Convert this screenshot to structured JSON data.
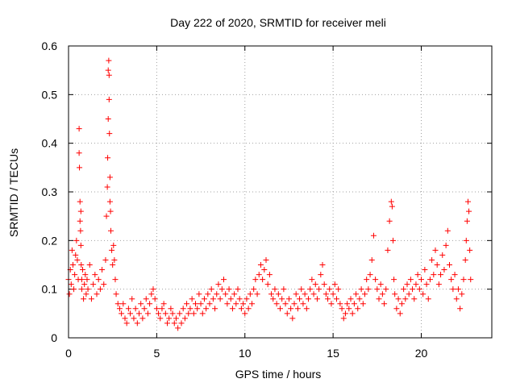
{
  "chart_data": {
    "type": "scatter",
    "title": "Day 222 of 2020, SRMTID for receiver meli",
    "xlabel": "GPS time / hours",
    "ylabel": "SRMTID / TECUs",
    "xlim": [
      0,
      24
    ],
    "ylim": [
      0,
      0.6
    ],
    "xticks": [
      0,
      5,
      10,
      15,
      20
    ],
    "yticks": [
      0,
      0.1,
      0.2,
      0.3,
      0.4,
      0.5,
      0.6
    ],
    "xtick_labels": [
      "0",
      "5",
      "10",
      "15",
      "20"
    ],
    "ytick_labels": [
      "0",
      "0.1",
      "0.2",
      "0.3",
      "0.4",
      "0.5",
      "0.6"
    ],
    "grid": true,
    "marker": "+",
    "color": "#ff0000",
    "series": [
      {
        "name": "SRMTID",
        "x": [
          0.0,
          0.05,
          0.1,
          0.15,
          0.2,
          0.25,
          0.3,
          0.35,
          0.4,
          0.45,
          0.5,
          0.55,
          0.6,
          0.6,
          0.62,
          0.65,
          0.65,
          0.68,
          0.7,
          0.7,
          0.72,
          0.75,
          0.75,
          0.8,
          0.85,
          0.9,
          0.95,
          1.0,
          1.05,
          1.1,
          1.2,
          1.3,
          1.4,
          1.5,
          1.6,
          1.7,
          1.8,
          1.9,
          2.0,
          2.1,
          2.15,
          2.2,
          2.22,
          2.25,
          2.25,
          2.28,
          2.3,
          2.3,
          2.32,
          2.35,
          2.35,
          2.38,
          2.4,
          2.45,
          2.5,
          2.55,
          2.6,
          2.65,
          2.7,
          2.8,
          2.9,
          3.0,
          3.1,
          3.2,
          3.3,
          3.4,
          3.5,
          3.6,
          3.7,
          3.8,
          3.9,
          4.0,
          4.1,
          4.2,
          4.3,
          4.4,
          4.5,
          4.6,
          4.7,
          4.8,
          4.9,
          5.0,
          5.1,
          5.2,
          5.3,
          5.4,
          5.5,
          5.6,
          5.7,
          5.8,
          5.9,
          6.0,
          6.1,
          6.2,
          6.3,
          6.4,
          6.5,
          6.6,
          6.7,
          6.8,
          6.9,
          7.0,
          7.1,
          7.2,
          7.3,
          7.4,
          7.5,
          7.6,
          7.7,
          7.8,
          7.9,
          8.0,
          8.1,
          8.2,
          8.3,
          8.4,
          8.5,
          8.6,
          8.7,
          8.8,
          8.9,
          9.0,
          9.1,
          9.2,
          9.3,
          9.4,
          9.5,
          9.6,
          9.7,
          9.8,
          9.9,
          10.0,
          10.1,
          10.2,
          10.3,
          10.4,
          10.5,
          10.6,
          10.7,
          10.8,
          10.9,
          11.0,
          11.1,
          11.2,
          11.3,
          11.4,
          11.5,
          11.6,
          11.7,
          11.8,
          11.9,
          12.0,
          12.1,
          12.2,
          12.3,
          12.4,
          12.5,
          12.6,
          12.7,
          12.8,
          12.9,
          13.0,
          13.1,
          13.2,
          13.3,
          13.4,
          13.5,
          13.6,
          13.7,
          13.8,
          13.9,
          14.0,
          14.1,
          14.2,
          14.3,
          14.4,
          14.5,
          14.6,
          14.7,
          14.8,
          14.9,
          15.0,
          15.1,
          15.2,
          15.3,
          15.4,
          15.5,
          15.6,
          15.7,
          15.8,
          15.9,
          16.0,
          16.1,
          16.2,
          16.3,
          16.4,
          16.5,
          16.6,
          16.7,
          16.8,
          16.9,
          17.0,
          17.1,
          17.2,
          17.3,
          17.4,
          17.5,
          17.6,
          17.7,
          17.8,
          17.9,
          18.0,
          18.1,
          18.2,
          18.3,
          18.35,
          18.4,
          18.45,
          18.5,
          18.6,
          18.7,
          18.8,
          18.9,
          19.0,
          19.1,
          19.2,
          19.3,
          19.4,
          19.5,
          19.6,
          19.7,
          19.8,
          19.9,
          20.0,
          20.1,
          20.2,
          20.3,
          20.4,
          20.5,
          20.6,
          20.7,
          20.8,
          20.9,
          21.0,
          21.1,
          21.2,
          21.3,
          21.4,
          21.5,
          21.6,
          21.7,
          21.8,
          21.9,
          22.0,
          22.1,
          22.2,
          22.3,
          22.4,
          22.5,
          22.55,
          22.6,
          22.65,
          22.7,
          22.75,
          22.8
        ],
        "y": [
          0.12,
          0.09,
          0.14,
          0.11,
          0.18,
          0.15,
          0.1,
          0.13,
          0.17,
          0.2,
          0.16,
          0.12,
          0.43,
          0.38,
          0.35,
          0.28,
          0.24,
          0.22,
          0.26,
          0.19,
          0.15,
          0.12,
          0.1,
          0.14,
          0.08,
          0.11,
          0.13,
          0.09,
          0.12,
          0.1,
          0.15,
          0.08,
          0.11,
          0.13,
          0.09,
          0.12,
          0.1,
          0.14,
          0.11,
          0.16,
          0.25,
          0.31,
          0.37,
          0.45,
          0.55,
          0.57,
          0.54,
          0.49,
          0.42,
          0.33,
          0.28,
          0.26,
          0.22,
          0.18,
          0.15,
          0.19,
          0.16,
          0.12,
          0.09,
          0.07,
          0.06,
          0.05,
          0.07,
          0.04,
          0.03,
          0.06,
          0.05,
          0.08,
          0.04,
          0.06,
          0.03,
          0.05,
          0.07,
          0.04,
          0.06,
          0.08,
          0.05,
          0.07,
          0.09,
          0.1,
          0.08,
          0.06,
          0.05,
          0.04,
          0.06,
          0.07,
          0.05,
          0.03,
          0.04,
          0.06,
          0.05,
          0.03,
          0.04,
          0.02,
          0.05,
          0.03,
          0.06,
          0.04,
          0.07,
          0.05,
          0.06,
          0.08,
          0.05,
          0.07,
          0.06,
          0.09,
          0.07,
          0.05,
          0.08,
          0.06,
          0.09,
          0.07,
          0.1,
          0.08,
          0.06,
          0.09,
          0.11,
          0.08,
          0.1,
          0.12,
          0.09,
          0.07,
          0.1,
          0.08,
          0.06,
          0.09,
          0.07,
          0.1,
          0.08,
          0.06,
          0.07,
          0.05,
          0.08,
          0.06,
          0.09,
          0.07,
          0.1,
          0.12,
          0.09,
          0.13,
          0.15,
          0.12,
          0.14,
          0.16,
          0.11,
          0.13,
          0.09,
          0.08,
          0.1,
          0.07,
          0.09,
          0.06,
          0.08,
          0.1,
          0.07,
          0.05,
          0.08,
          0.06,
          0.04,
          0.07,
          0.09,
          0.06,
          0.08,
          0.1,
          0.07,
          0.09,
          0.06,
          0.08,
          0.1,
          0.12,
          0.09,
          0.11,
          0.08,
          0.1,
          0.13,
          0.15,
          0.11,
          0.09,
          0.08,
          0.1,
          0.07,
          0.09,
          0.11,
          0.08,
          0.1,
          0.07,
          0.06,
          0.04,
          0.05,
          0.07,
          0.06,
          0.08,
          0.05,
          0.07,
          0.09,
          0.06,
          0.08,
          0.1,
          0.07,
          0.09,
          0.12,
          0.1,
          0.13,
          0.16,
          0.21,
          0.12,
          0.1,
          0.08,
          0.11,
          0.09,
          0.07,
          0.1,
          0.18,
          0.24,
          0.28,
          0.27,
          0.2,
          0.12,
          0.09,
          0.06,
          0.08,
          0.05,
          0.07,
          0.1,
          0.08,
          0.11,
          0.09,
          0.12,
          0.1,
          0.08,
          0.11,
          0.13,
          0.1,
          0.12,
          0.09,
          0.14,
          0.11,
          0.08,
          0.12,
          0.16,
          0.13,
          0.18,
          0.15,
          0.11,
          0.13,
          0.17,
          0.14,
          0.19,
          0.22,
          0.15,
          0.12,
          0.1,
          0.13,
          0.08,
          0.1,
          0.06,
          0.09,
          0.12,
          0.16,
          0.2,
          0.24,
          0.28,
          0.26,
          0.18,
          0.12
        ]
      }
    ]
  }
}
